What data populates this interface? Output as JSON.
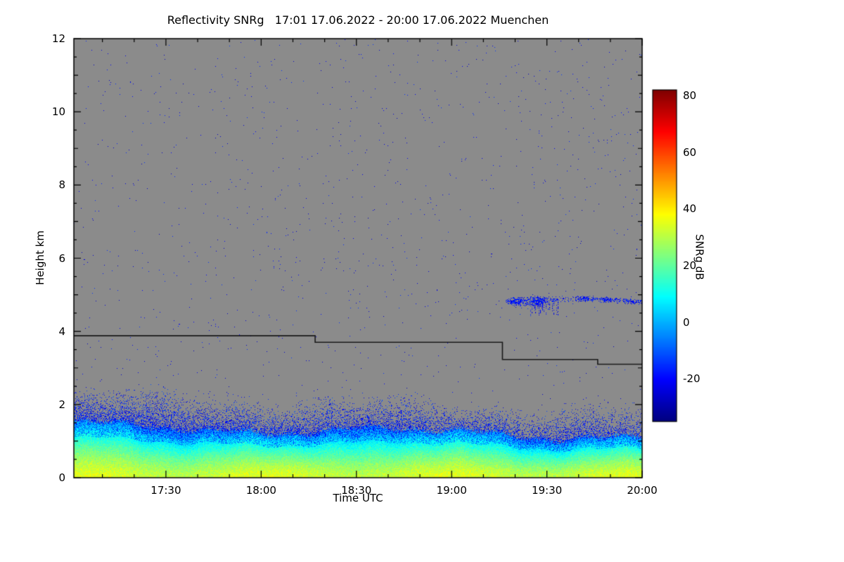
{
  "chart_data": {
    "type": "heatmap",
    "title": "Reflectivity SNRg   17:01 17.06.2022 - 20:00 17.06.2022 Muenchen",
    "station": "Muenchen",
    "date": "17.06.2022",
    "time_start": "17:01",
    "time_end": "20:00",
    "xlabel": "Time UTC",
    "ylabel": "Height km",
    "x_total_minutes": 179,
    "x_ticks": [
      {
        "minutes_from_start": 29,
        "label": "17:30"
      },
      {
        "minutes_from_start": 59,
        "label": "18:00"
      },
      {
        "minutes_from_start": 89,
        "label": "18:30"
      },
      {
        "minutes_from_start": 119,
        "label": "19:00"
      },
      {
        "minutes_from_start": 149,
        "label": "19:30"
      },
      {
        "minutes_from_start": 179,
        "label": "20:00"
      }
    ],
    "x_minor_tick_minutes": 10,
    "ylim": [
      0,
      12
    ],
    "y_ticks": [
      {
        "value": 0,
        "label": "0"
      },
      {
        "value": 2,
        "label": "2"
      },
      {
        "value": 4,
        "label": "4"
      },
      {
        "value": 6,
        "label": "6"
      },
      {
        "value": 8,
        "label": "8"
      },
      {
        "value": 10,
        "label": "10"
      },
      {
        "value": 12,
        "label": "12"
      }
    ],
    "plot_background_color": "#8b8b8b",
    "colormap": "jet",
    "colorbar": {
      "label": "SNRg dB",
      "vmin": -35,
      "vmax": 82,
      "ticks": [
        {
          "value": 80,
          "label": "80"
        },
        {
          "value": 60,
          "label": "60"
        },
        {
          "value": 40,
          "label": "40"
        },
        {
          "value": 20,
          "label": "20"
        },
        {
          "value": 0,
          "label": "0"
        },
        {
          "value": -20,
          "label": "-20"
        }
      ]
    },
    "features": {
      "ambient_noise_speckle": {
        "density": 0.0028,
        "snr_db_range": [
          -28,
          -14
        ]
      },
      "boundary_layer": {
        "surface_snr_db": 33,
        "solid_top_km_start": 1.4,
        "solid_top_km_end": 1.12,
        "speckle_top_km_start": 2.4,
        "speckle_top_km_end": 1.9,
        "speckle_snr_db_range": [
          -26,
          -10
        ]
      },
      "cloud_band": {
        "time_start_min": 136,
        "time_end_min": 179,
        "height_center_km": 4.85,
        "snr_db_range": [
          -25,
          -13
        ],
        "fall_streaks": {
          "time_start_min": 141,
          "time_end_min": 153,
          "bottom_km": 4.35
        }
      },
      "limit_line": {
        "color": "#1a1a1a",
        "segments": [
          {
            "t0_min": 0,
            "t1_min": 76,
            "height_km": 3.88
          },
          {
            "t0_min": 76,
            "t1_min": 135,
            "height_km": 3.7
          },
          {
            "t0_min": 135,
            "t1_min": 165,
            "height_km": 3.23
          },
          {
            "t0_min": 165,
            "t1_min": 179,
            "height_km": 3.1
          }
        ]
      }
    }
  }
}
